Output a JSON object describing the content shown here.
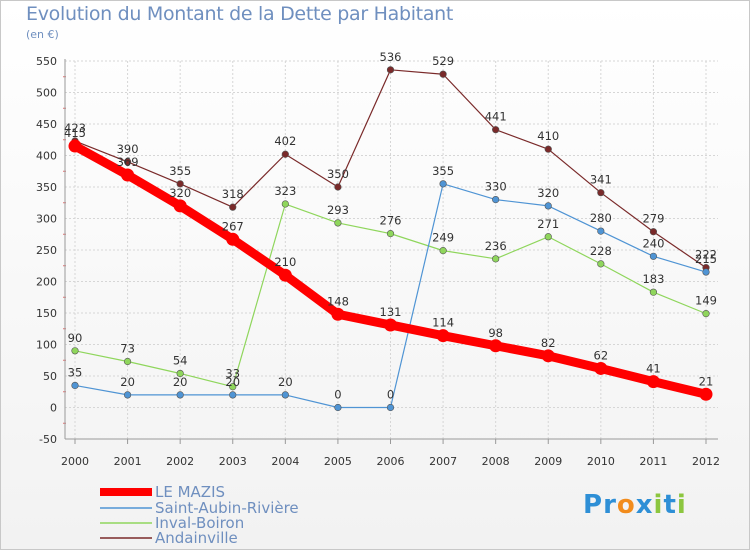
{
  "title": "Evolution du Montant de la Dette par Habitant",
  "subtitle": "(en €)",
  "logo": {
    "text": "Proxiti",
    "letters": [
      "P",
      "r",
      "o",
      "x",
      "i",
      "t",
      "i"
    ],
    "colors": [
      "#2e8fd6",
      "#2e8fd6",
      "#f28c1c",
      "#2e8fd6",
      "#8cc63f",
      "#2e8fd6",
      "#8cc63f"
    ]
  },
  "chart_data": {
    "type": "line",
    "title": "Evolution du Montant de la Dette par Habitant",
    "ylabel": "(en €)",
    "xlabel": "",
    "x": [
      "2000",
      "2001",
      "2002",
      "2003",
      "2004",
      "2005",
      "2006",
      "2007",
      "2008",
      "2009",
      "2010",
      "2011",
      "2012"
    ],
    "ylim": [
      -50,
      550
    ],
    "yticks": [
      "-50",
      "0",
      "50",
      "100",
      "150",
      "200",
      "250",
      "300",
      "350",
      "400",
      "450",
      "500",
      "550"
    ],
    "grid": true,
    "legend_position": "bottom-left",
    "series": [
      {
        "name": "LE MAZIS",
        "color": "#ff0000",
        "values": [
          415,
          369,
          320,
          267,
          210,
          148,
          131,
          114,
          98,
          82,
          62,
          41,
          21
        ],
        "labels": [
          "415",
          "369",
          "320",
          "267",
          "210",
          "148",
          "131",
          "114",
          "98",
          "82",
          "62",
          "41",
          "21"
        ]
      },
      {
        "name": "Saint-Aubin-Rivière",
        "color": "#4f94d4",
        "values": [
          35,
          20,
          20,
          20,
          20,
          0,
          0,
          355,
          330,
          320,
          280,
          240,
          215
        ],
        "labels": [
          "35",
          "20",
          "20",
          "20",
          "20",
          "0",
          "0",
          "355",
          "330",
          "320",
          "280",
          "240",
          "215"
        ]
      },
      {
        "name": "Inval-Boiron",
        "color": "#8fd65c",
        "values": [
          90,
          73,
          54,
          33,
          323,
          293,
          276,
          249,
          236,
          271,
          228,
          183,
          149
        ],
        "labels": [
          "90",
          "73",
          "54",
          "33",
          "323",
          "293",
          "276",
          "249",
          "236",
          "271",
          "228",
          "183",
          "149"
        ]
      },
      {
        "name": "Andainville",
        "color": "#7a2a2a",
        "values": [
          423,
          390,
          355,
          318,
          402,
          350,
          536,
          529,
          441,
          410,
          341,
          279,
          222
        ],
        "labels": [
          "423",
          "390",
          "355",
          "318",
          "402",
          "350",
          "536",
          "529",
          "441",
          "410",
          "341",
          "279",
          "222"
        ]
      }
    ]
  }
}
